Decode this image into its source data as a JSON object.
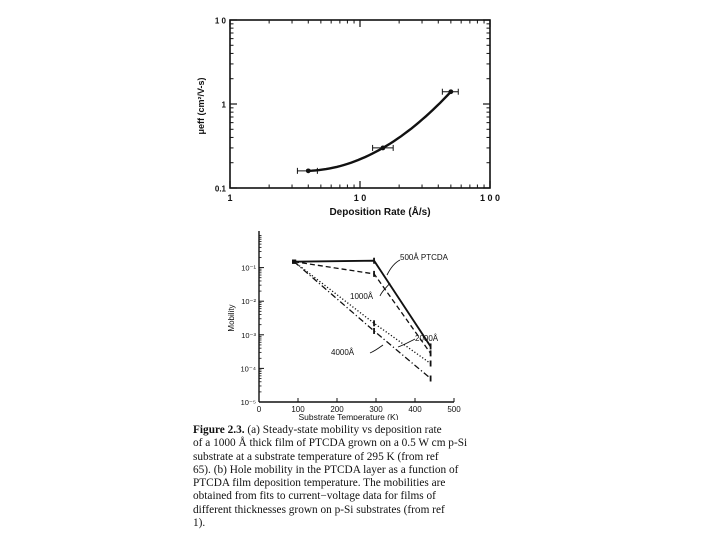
{
  "chart_data": [
    {
      "type": "line",
      "xscale": "log",
      "yscale": "log",
      "xlim": [
        1,
        100
      ],
      "ylim": [
        0.1,
        10
      ],
      "xticks": [
        "1",
        "1 0",
        "1 0 0"
      ],
      "yticks": [
        "0.1",
        "1",
        "1 0"
      ],
      "xlabel": "Deposition Rate (Å/s)",
      "ylabel": "μeff (cm²/V-s)",
      "series": [
        {
          "x": [
            4,
            15,
            50
          ],
          "y": [
            0.16,
            0.3,
            1.4
          ],
          "xerr_low": [
            3.3,
            12.5,
            43
          ],
          "xerr_high": [
            4.7,
            18,
            57
          ]
        }
      ]
    },
    {
      "type": "line",
      "yscale": "log",
      "xlim": [
        0,
        500
      ],
      "ylim": [
        1e-05,
        1
      ],
      "xticks": [
        "0",
        "100",
        "200",
        "300",
        "400",
        "500"
      ],
      "yticks": [
        "10⁻⁵",
        "10⁻⁴",
        "10⁻³",
        "10⁻²",
        "10⁻¹"
      ],
      "xlabel": "Substrate Temperature (K)",
      "ylabel": "Mobility",
      "series": [
        {
          "name": "500Å PTCDA",
          "style": "solid",
          "x": [
            90,
            295,
            440
          ],
          "y": [
            0.15,
            0.16,
            0.00045
          ]
        },
        {
          "name": "1000Å",
          "style": "dashed",
          "x": [
            90,
            295,
            440
          ],
          "y": [
            0.15,
            0.065,
            0.00028
          ]
        },
        {
          "name": "2000Å",
          "style": "dotted",
          "x": [
            90,
            295,
            440
          ],
          "y": [
            0.15,
            0.0022,
            0.00014
          ]
        },
        {
          "name": "4000Å",
          "style": "dashdot",
          "x": [
            90,
            295,
            440
          ],
          "y": [
            0.15,
            0.0013,
            5e-05
          ]
        }
      ]
    }
  ],
  "caption": {
    "lead": "Figure 2.3.",
    "lines": [
      "(a) Steady-state mobility vs deposition rate",
      "of a 1000 Å thick film of PTCDA grown on a 0.5 W cm p-Si",
      "substrate at a substrate temperature of 295 K (from ref",
      "65). (b) Hole mobility in the PTCDA layer as a function of",
      "PTCDA film deposition temperature. The mobilities are",
      "obtained from fits to current−voltage data for films of",
      "different thicknesses grown on p-Si substrates (from ref",
      "1)."
    ]
  }
}
